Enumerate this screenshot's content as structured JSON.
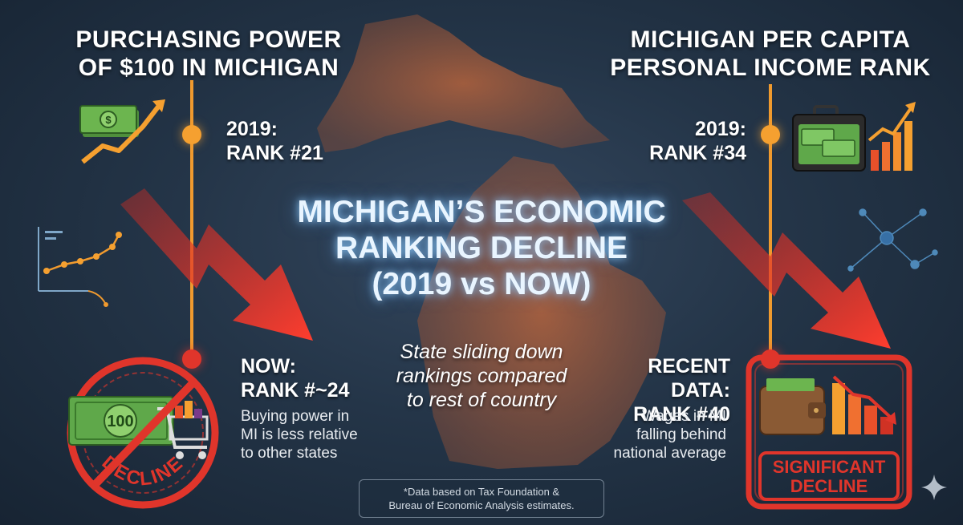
{
  "left": {
    "title_line1": "PURCHASING POWER",
    "title_line2": "OF $100 IN MICHIGAN",
    "rank_2019_label": "2019:",
    "rank_2019_value": "RANK #21",
    "rank_now_label": "NOW:",
    "rank_now_value": "RANK #~24",
    "desc_lines": [
      "Buying power in",
      "MI is less relative",
      "to other states"
    ],
    "badge_bill_text": "100",
    "badge_text": "DECLINE"
  },
  "right": {
    "title_line1": "MICHIGAN PER CAPITA",
    "title_line2": "PERSONAL INCOME RANK",
    "rank_2019_label": "2019:",
    "rank_2019_value": "RANK #34",
    "rank_now_label": "RECENT DATA:",
    "rank_now_value": "RANK #40",
    "desc_lines": [
      "Wages in MI",
      "falling behind",
      "national average"
    ],
    "badge_text_line1": "SIGNIFICANT",
    "badge_text_line2": "DECLINE"
  },
  "center": {
    "title_line1": "MICHIGAN’S ECONOMIC",
    "title_line2": "RANKING DECLINE",
    "title_line3": "(2019 vs NOW)",
    "subtitle_lines": [
      "State sliding down",
      "rankings compared",
      "to rest of country"
    ]
  },
  "footnote": {
    "line1": "*Data based on Tax Foundation &",
    "line2": "Bureau of Economic Analysis estimates."
  },
  "colors": {
    "background": "#243548",
    "arrow_red": "#e8352a",
    "timeline_orange": "#f09a2e",
    "money_green": "#5fa84a",
    "glow_blue": "#9fd3ff"
  },
  "icons": [
    "money-bill-icon",
    "trend-up-arrow-icon",
    "line-chart-icon",
    "shopping-cart-icon",
    "briefcase-money-icon",
    "bar-chart-icon",
    "network-icon",
    "wallet-icon",
    "sparkle-icon"
  ]
}
